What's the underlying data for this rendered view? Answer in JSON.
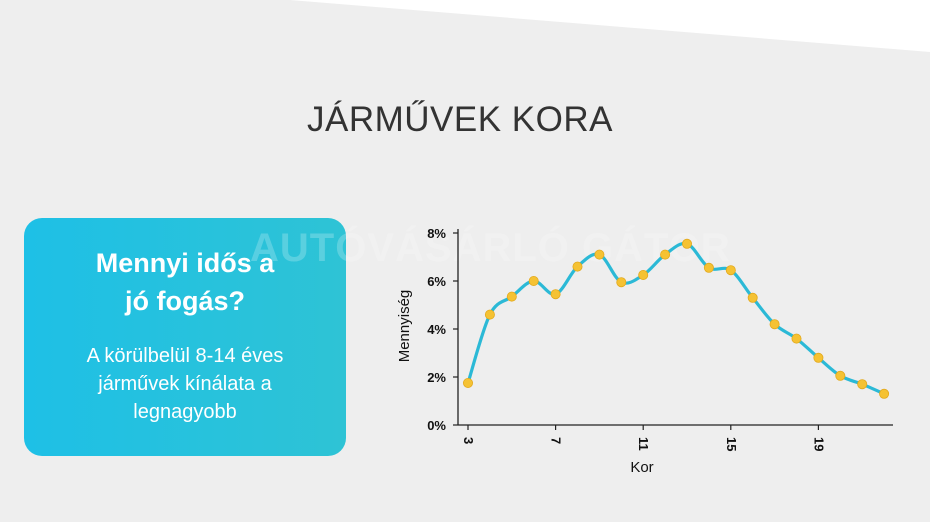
{
  "page": {
    "title": "JÁRMŰVEK KORA"
  },
  "card": {
    "heading_line1": "Mennyi idős a",
    "heading_line2": "jó fogás?",
    "text_line1": "A körülbelül 8-14 éves",
    "text_line2": "járművek kínálata a",
    "text_line3": "legnagyobb"
  },
  "watermark": "AUTÓVÁSÁRLÓ GÁTOR",
  "colors": {
    "line": "#2bb9d6",
    "point": "#f5c233",
    "card": "#1ec0e6",
    "background": "#eeeeee"
  },
  "chart_data": {
    "type": "line",
    "title": "",
    "xlabel": "Kor",
    "ylabel": "Mennyiség",
    "xlim": [
      3,
      23
    ],
    "ylim": [
      0,
      8
    ],
    "x_ticks": [
      3,
      7,
      11,
      15,
      19
    ],
    "x_tick_labels": [
      "3",
      "7",
      "11",
      "15",
      "19"
    ],
    "y_ticks": [
      0,
      2,
      4,
      6,
      8
    ],
    "y_tick_labels": [
      "0%",
      "2%",
      "4%",
      "6%",
      "8%"
    ],
    "series": [
      {
        "x": [
          3,
          4,
          5,
          6,
          7,
          8,
          9,
          10,
          11,
          12,
          13,
          14,
          15,
          16,
          17,
          18,
          19,
          20,
          21,
          22
        ],
        "values": [
          1.75,
          4.6,
          5.35,
          6.0,
          5.45,
          6.6,
          7.1,
          5.95,
          6.25,
          7.1,
          7.55,
          6.55,
          6.45,
          5.3,
          4.2,
          3.6,
          2.8,
          2.05,
          1.7,
          1.3
        ]
      }
    ]
  }
}
